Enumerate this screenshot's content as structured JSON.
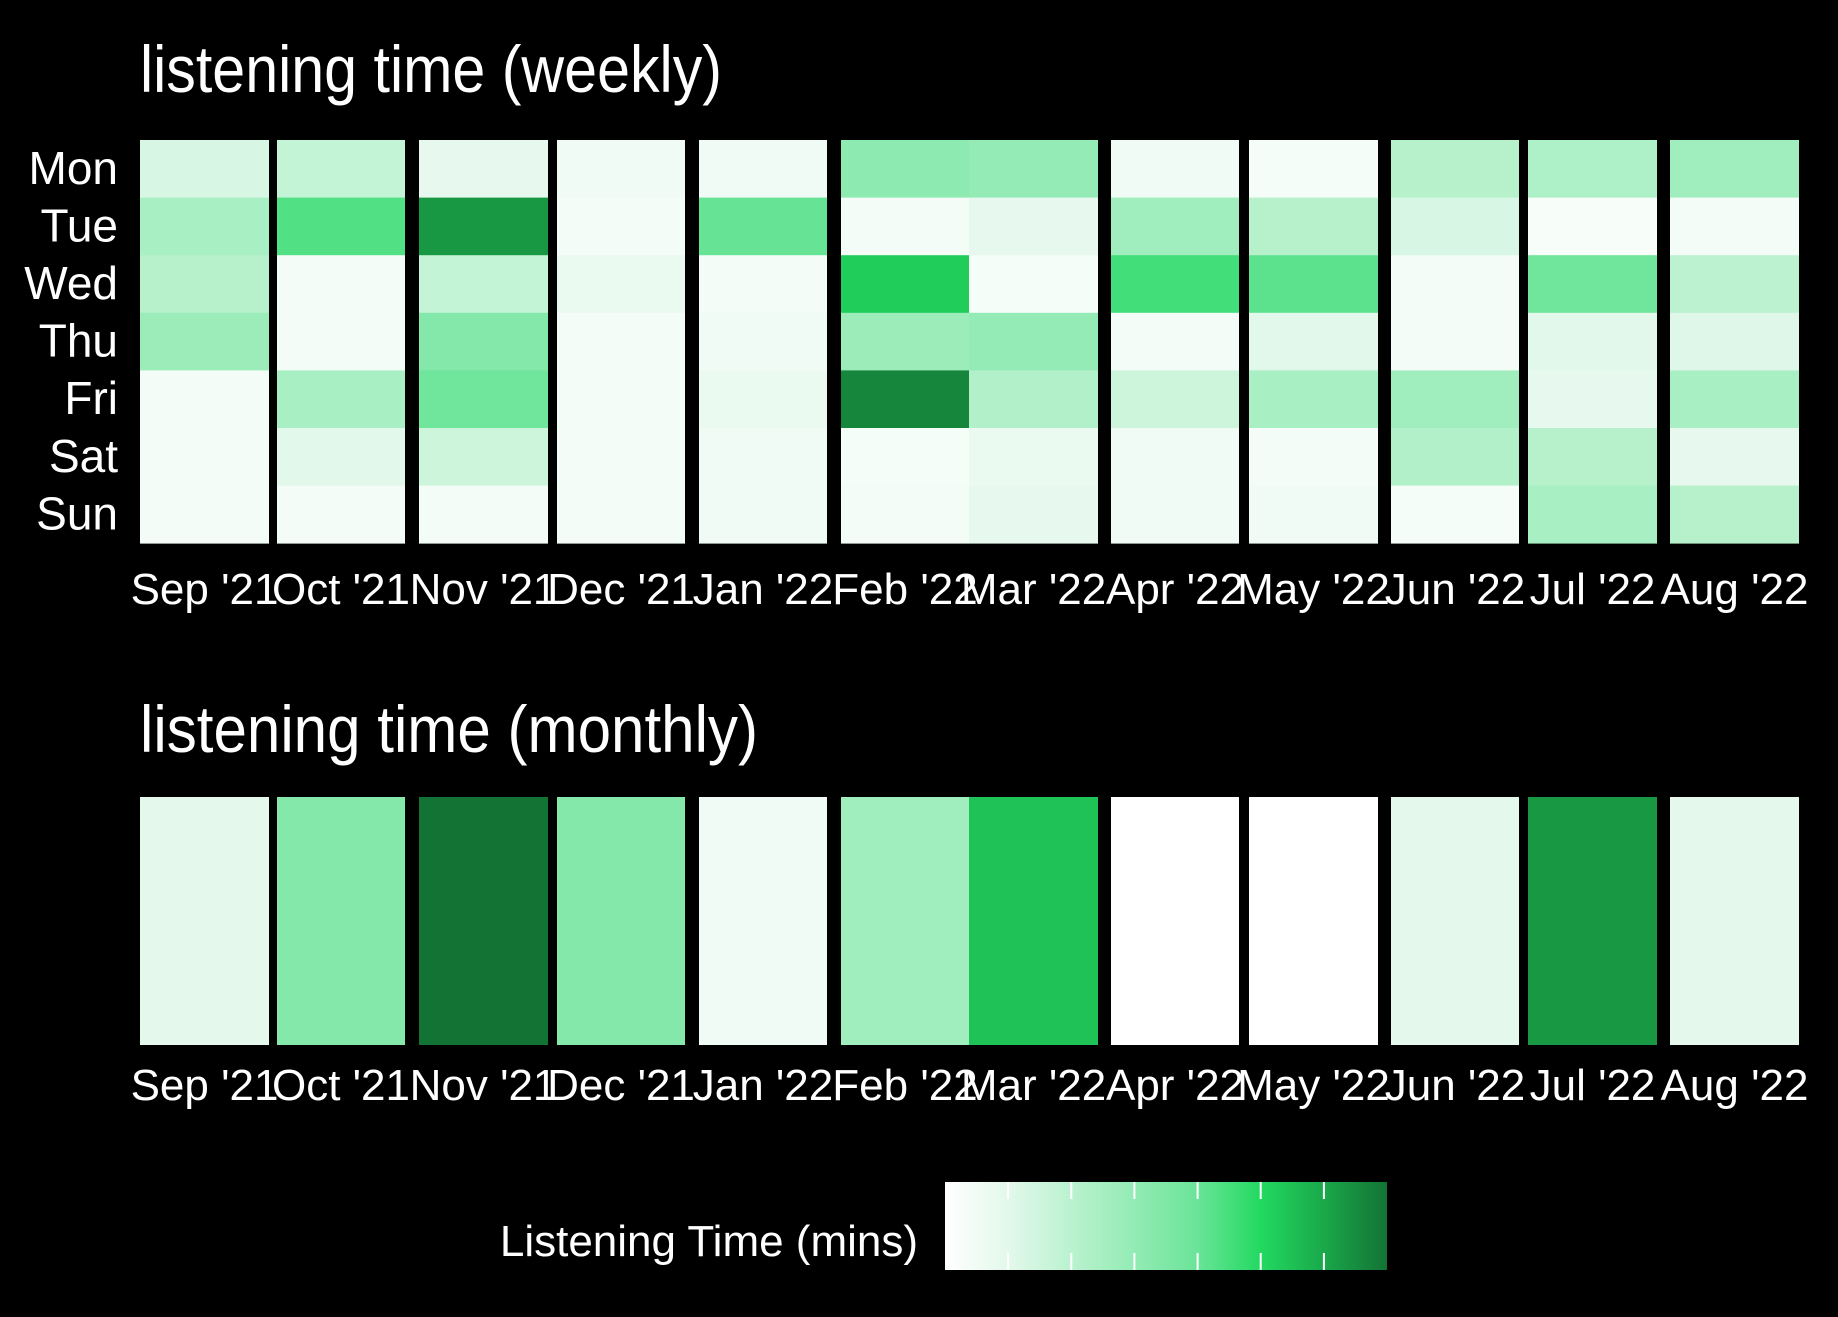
{
  "chart_data": [
    {
      "type": "heatmap",
      "title": "listening time (weekly)",
      "xlabel": "",
      "ylabel": "",
      "months": [
        "Sep '21",
        "Oct '21",
        "Nov '21",
        "Dec '21",
        "Jan '22",
        "Feb '22",
        "Mar '22",
        "Apr '22",
        "May '22",
        "Jun '22",
        "Jul '22",
        "Aug '22"
      ],
      "days": [
        "Mon",
        "Tue",
        "Wed",
        "Thu",
        "Fri",
        "Sat",
        "Sun"
      ],
      "values_by_day": [
        [
          0.18,
          0.25,
          0.12,
          0.08,
          0.08,
          0.45,
          0.42,
          0.08,
          0.05,
          0.3,
          0.33,
          0.38
        ],
        [
          0.35,
          0.62,
          0.9,
          0.06,
          0.58,
          0.06,
          0.12,
          0.38,
          0.3,
          0.18,
          0.04,
          0.06
        ],
        [
          0.3,
          0.06,
          0.25,
          0.1,
          0.06,
          0.75,
          0.05,
          0.65,
          0.6,
          0.06,
          0.55,
          0.28
        ],
        [
          0.4,
          0.06,
          0.48,
          0.06,
          0.08,
          0.4,
          0.42,
          0.06,
          0.15,
          0.06,
          0.15,
          0.16
        ],
        [
          0.06,
          0.35,
          0.55,
          0.06,
          0.1,
          0.95,
          0.32,
          0.22,
          0.35,
          0.38,
          0.12,
          0.35
        ],
        [
          0.06,
          0.15,
          0.22,
          0.06,
          0.08,
          0.05,
          0.1,
          0.08,
          0.06,
          0.32,
          0.3,
          0.12
        ],
        [
          0.06,
          0.06,
          0.06,
          0.06,
          0.08,
          0.06,
          0.12,
          0.08,
          0.08,
          0.05,
          0.35,
          0.3
        ]
      ]
    },
    {
      "type": "heatmap",
      "title": "listening time (monthly)",
      "xlabel": "",
      "ylabel": "",
      "months": [
        "Sep '21",
        "Oct '21",
        "Nov '21",
        "Dec '21",
        "Jan '22",
        "Feb '22",
        "Mar '22",
        "Apr '22",
        "May '22",
        "Jun '22",
        "Jul '22",
        "Aug '22"
      ],
      "values": [
        0.14,
        0.48,
        1.0,
        0.48,
        0.08,
        0.38,
        0.78,
        0.0,
        0.0,
        0.14,
        0.9,
        0.14
      ]
    }
  ],
  "legend": {
    "title": "Listening Time (mins)",
    "colors": [
      "#ffffff",
      "#e3f8eb",
      "#baf2cf",
      "#93ebb4",
      "#6ae498",
      "#22d960",
      "#1aa84a",
      "#137334"
    ]
  }
}
